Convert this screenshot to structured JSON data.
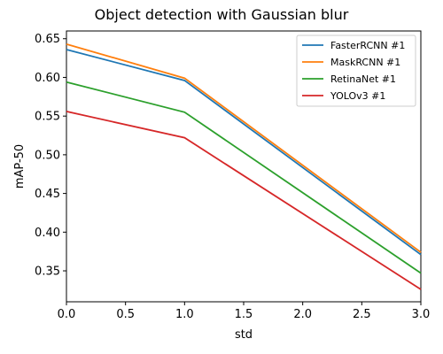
{
  "chart_data": {
    "type": "line",
    "title": "Object detection with Gaussian blur",
    "xlabel": "std",
    "ylabel": "mAP-50",
    "x": [
      0.0,
      1.0,
      3.0
    ],
    "xlim": [
      0.0,
      3.0
    ],
    "ylim": [
      0.31,
      0.66
    ],
    "xticks": [
      "0.0",
      "0.5",
      "1.0",
      "1.5",
      "2.0",
      "2.5",
      "3.0"
    ],
    "yticks": [
      "0.35",
      "0.40",
      "0.45",
      "0.50",
      "0.55",
      "0.60",
      "0.65"
    ],
    "grid": false,
    "legend_position": "top-right",
    "series": [
      {
        "name": "FasterRCNN #1",
        "color": "#1f77b4",
        "values": [
          0.636,
          0.596,
          0.371
        ]
      },
      {
        "name": "MaskRCNN #1",
        "color": "#ff7f0e",
        "values": [
          0.643,
          0.599,
          0.374
        ]
      },
      {
        "name": "RetinaNet #1",
        "color": "#2ca02c",
        "values": [
          0.594,
          0.555,
          0.347
        ]
      },
      {
        "name": "YOLOv3 #1",
        "color": "#d62728",
        "values": [
          0.556,
          0.522,
          0.326
        ]
      }
    ]
  }
}
